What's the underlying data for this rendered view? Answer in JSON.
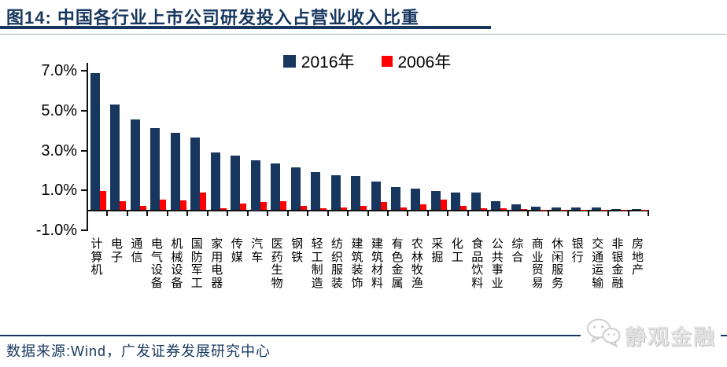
{
  "header": {
    "title": "图14:  中国各行业上市公司研发投入占营业收入比重"
  },
  "chart_data": {
    "type": "bar",
    "title": "中国各行业上市公司研发投入占营业收入比重",
    "categories": [
      "计算机",
      "电子",
      "通信",
      "电气设备",
      "机械设备",
      "国防军工",
      "家用电器",
      "传媒",
      "汽车",
      "医药生物",
      "钢铁",
      "轻工制造",
      "纺织服装",
      "建筑装饰",
      "建筑材料",
      "有色金属",
      "农林牧渔",
      "采掘",
      "化工",
      "食品饮料",
      "公共事业",
      "综合",
      "商业贸易",
      "休闲服务",
      "银行",
      "交通运输",
      "非银金融",
      "房地产"
    ],
    "series": [
      {
        "name": "2016年",
        "color": "#17375E",
        "values": [
          6.9,
          5.3,
          4.55,
          4.15,
          3.9,
          3.65,
          2.9,
          2.75,
          2.5,
          2.35,
          2.15,
          1.9,
          1.75,
          1.7,
          1.45,
          1.15,
          1.1,
          0.95,
          0.9,
          0.88,
          0.45,
          0.3,
          0.16,
          0.14,
          0.13,
          0.13,
          0.06,
          0.04
        ]
      },
      {
        "name": "2006年",
        "color": "#FE0000",
        "values": [
          0.95,
          0.45,
          0.2,
          0.55,
          0.5,
          0.9,
          0.1,
          0.35,
          0.4,
          0.45,
          0.2,
          0.1,
          0.15,
          0.2,
          0.4,
          0.15,
          0.3,
          0.55,
          0.2,
          0.08,
          0.1,
          0.05,
          0.03,
          0.02,
          0.02,
          0.03,
          0.02,
          0.02
        ]
      }
    ],
    "xlabel": "",
    "ylabel": "",
    "ylim": [
      -1,
      7
    ],
    "yticks": [
      {
        "value": 7,
        "label": "7.0%"
      },
      {
        "value": 5,
        "label": "5.0%"
      },
      {
        "value": 3,
        "label": "3.0%"
      },
      {
        "value": 1,
        "label": "1.0%"
      },
      {
        "value": -1,
        "label": "-1.0%"
      }
    ],
    "grid": false,
    "legend_position": "top-center"
  },
  "footer": {
    "source": "数据来源:Wind，广发证券发展研究中心",
    "watermark": "静观金融"
  }
}
